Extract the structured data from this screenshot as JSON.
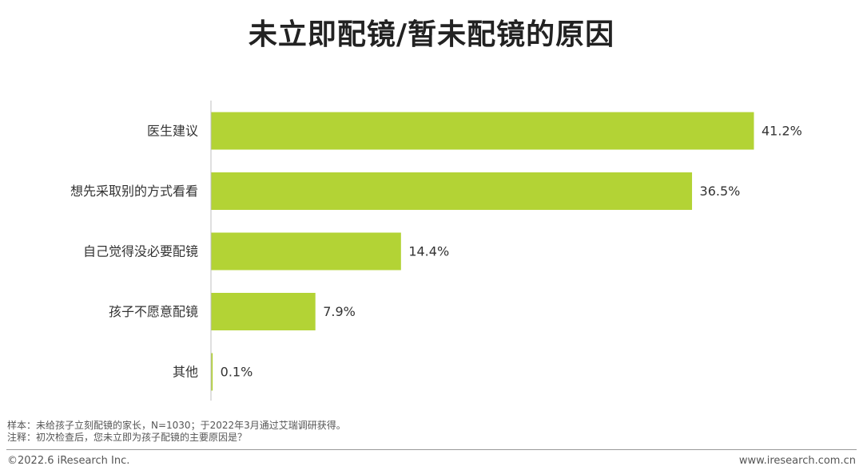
{
  "page": {
    "title": "未立即配镜/暂未配镜的原因",
    "sample_note": "样本：未给孩子立刻配镜的家长，N=1030；于2022年3月通过艾瑞调研获得。",
    "comment_note": "注释：初次检查后，您未立即为孩子配镜的主要原因是？",
    "copyright": "©2022.6 iResearch Inc.",
    "website": "www.iresearch.com.cn"
  },
  "chart_data": {
    "type": "bar",
    "orientation": "horizontal",
    "categories": [
      "医生建议",
      "想先采取别的方式看看",
      "自己觉得没必要配镜",
      "孩子不愿意配镜",
      "其他"
    ],
    "values": [
      41.2,
      36.5,
      14.4,
      7.9,
      0.1
    ],
    "value_labels": [
      "41.2%",
      "36.5%",
      "14.4%",
      "7.9%",
      "0.1%"
    ],
    "unit": "%",
    "xlim": [
      0,
      45
    ],
    "bar_color": "#b3d335",
    "axis_color": "#bfbfbf",
    "grid": false,
    "legend": "none"
  }
}
